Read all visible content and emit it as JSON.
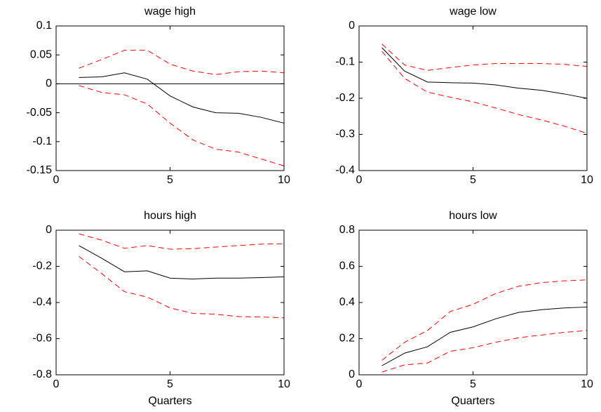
{
  "chart_data": [
    {
      "type": "line",
      "title": "wage high",
      "x": [
        1,
        2,
        3,
        4,
        5,
        6,
        7,
        8,
        9,
        10
      ],
      "xlim": [
        0,
        10
      ],
      "xticks": [
        0,
        5,
        10
      ],
      "ylim": [
        -0.15,
        0.1
      ],
      "yticks": [
        -0.15,
        -0.1,
        -0.05,
        0,
        0.05,
        0.1
      ],
      "hlines": [
        0
      ],
      "series": [
        {
          "color": "#000000",
          "style": "solid",
          "values": [
            0.011,
            0.012,
            0.019,
            0.008,
            -0.021,
            -0.04,
            -0.05,
            -0.051,
            -0.058,
            -0.068
          ]
        },
        {
          "color": "#ff0000",
          "style": "dashed",
          "values": [
            0.027,
            0.042,
            0.058,
            0.058,
            0.034,
            0.022,
            0.016,
            0.021,
            0.022,
            0.019
          ]
        },
        {
          "color": "#ff0000",
          "style": "dashed",
          "values": [
            -0.003,
            -0.015,
            -0.019,
            -0.035,
            -0.068,
            -0.097,
            -0.113,
            -0.118,
            -0.13,
            -0.142
          ]
        }
      ]
    },
    {
      "type": "line",
      "title": "wage low",
      "x": [
        1,
        2,
        3,
        4,
        5,
        6,
        7,
        8,
        9,
        10
      ],
      "xlim": [
        0,
        10
      ],
      "xticks": [
        0,
        5,
        10
      ],
      "ylim": [
        -0.4,
        0
      ],
      "yticks": [
        -0.4,
        -0.3,
        -0.2,
        -0.1,
        0
      ],
      "series": [
        {
          "color": "#000000",
          "style": "solid",
          "values": [
            -0.06,
            -0.125,
            -0.155,
            -0.157,
            -0.158,
            -0.163,
            -0.172,
            -0.178,
            -0.188,
            -0.2
          ]
        },
        {
          "color": "#ff0000",
          "style": "dashed",
          "values": [
            -0.05,
            -0.108,
            -0.123,
            -0.115,
            -0.108,
            -0.104,
            -0.104,
            -0.104,
            -0.106,
            -0.112
          ]
        },
        {
          "color": "#ff0000",
          "style": "dashed",
          "values": [
            -0.07,
            -0.145,
            -0.183,
            -0.197,
            -0.21,
            -0.227,
            -0.245,
            -0.26,
            -0.277,
            -0.297
          ]
        }
      ]
    },
    {
      "type": "line",
      "title": "hours high",
      "xlabel": "Quarters",
      "x": [
        1,
        2,
        3,
        4,
        5,
        6,
        7,
        8,
        9,
        10
      ],
      "xlim": [
        0,
        10
      ],
      "xticks": [
        0,
        5,
        10
      ],
      "ylim": [
        -0.8,
        0
      ],
      "yticks": [
        -0.8,
        -0.6,
        -0.4,
        -0.2,
        0
      ],
      "series": [
        {
          "color": "#000000",
          "style": "solid",
          "values": [
            -0.085,
            -0.155,
            -0.23,
            -0.225,
            -0.265,
            -0.27,
            -0.265,
            -0.265,
            -0.262,
            -0.258
          ]
        },
        {
          "color": "#ff0000",
          "style": "dashed",
          "values": [
            -0.02,
            -0.055,
            -0.1,
            -0.085,
            -0.105,
            -0.102,
            -0.093,
            -0.085,
            -0.077,
            -0.075
          ]
        },
        {
          "color": "#ff0000",
          "style": "dashed",
          "values": [
            -0.145,
            -0.24,
            -0.34,
            -0.37,
            -0.43,
            -0.46,
            -0.465,
            -0.478,
            -0.48,
            -0.485
          ]
        }
      ]
    },
    {
      "type": "line",
      "title": "hours low",
      "xlabel": "Quarters",
      "x": [
        1,
        2,
        3,
        4,
        5,
        6,
        7,
        8,
        9,
        10
      ],
      "xlim": [
        0,
        10
      ],
      "xticks": [
        0,
        5,
        10
      ],
      "ylim": [
        0,
        0.8
      ],
      "yticks": [
        0,
        0.2,
        0.4,
        0.6,
        0.8
      ],
      "series": [
        {
          "color": "#000000",
          "style": "solid",
          "values": [
            0.05,
            0.12,
            0.155,
            0.235,
            0.265,
            0.31,
            0.345,
            0.36,
            0.37,
            0.375
          ]
        },
        {
          "color": "#ff0000",
          "style": "dashed",
          "values": [
            0.08,
            0.18,
            0.245,
            0.35,
            0.39,
            0.45,
            0.49,
            0.51,
            0.52,
            0.525
          ]
        },
        {
          "color": "#ff0000",
          "style": "dashed",
          "values": [
            0.015,
            0.055,
            0.065,
            0.13,
            0.15,
            0.18,
            0.205,
            0.22,
            0.235,
            0.245
          ]
        }
      ]
    }
  ]
}
